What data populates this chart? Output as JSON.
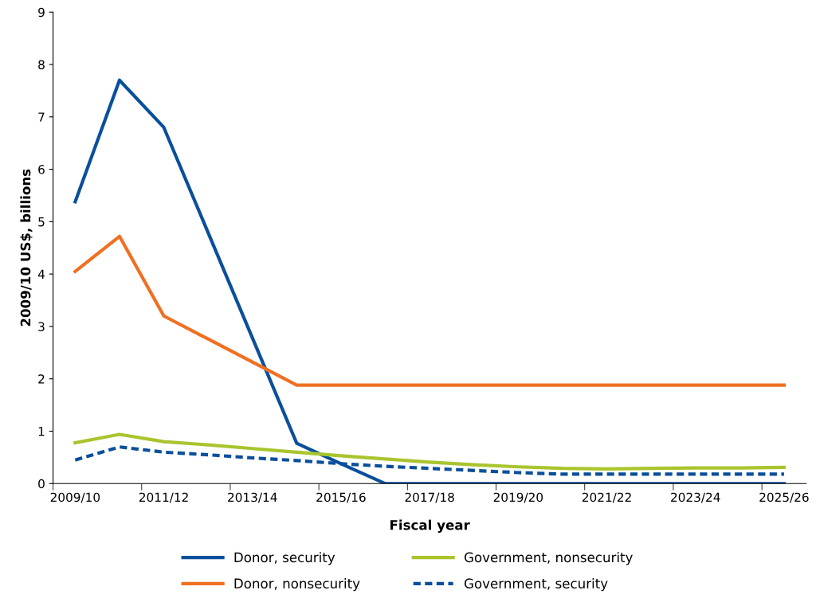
{
  "chart_data": {
    "type": "line",
    "xlabel": "Fiscal year",
    "ylabel": "2009/10 US$, billions",
    "categories": [
      "2009/10",
      null,
      "2011/12",
      null,
      "2013/14",
      null,
      "2015/16",
      null,
      "2017/18",
      null,
      "2019/20",
      null,
      "2021/22",
      null,
      "2023/24",
      null,
      "2025/26"
    ],
    "ylim": [
      0,
      9
    ],
    "yticks": [
      0,
      1,
      2,
      3,
      4,
      5,
      6,
      7,
      8,
      9
    ],
    "grid": false,
    "legend": "bottom",
    "marker": "none",
    "series": [
      {
        "name": "Donor, security",
        "color": "#0b4f9c",
        "line_style": "solid",
        "values": [
          5.38,
          7.7,
          6.8,
          4.79,
          2.78,
          0.77,
          0.38,
          0,
          0,
          0,
          0,
          0,
          0,
          0,
          0,
          0,
          0
        ]
      },
      {
        "name": "Donor, nonsecurity",
        "color": "#f07022",
        "line_style": "solid",
        "values": [
          4.05,
          4.72,
          3.2,
          2.76,
          2.32,
          1.88,
          1.88,
          1.88,
          1.88,
          1.88,
          1.88,
          1.88,
          1.88,
          1.88,
          1.88,
          1.88,
          1.88
        ]
      },
      {
        "name": "Government, nonsecurity",
        "color": "#a9c52e",
        "line_style": "solid",
        "values": [
          0.78,
          0.94,
          0.8,
          0.74,
          0.67,
          0.6,
          0.53,
          0.47,
          0.41,
          0.36,
          0.32,
          0.29,
          0.28,
          0.29,
          0.3,
          0.3,
          0.31
        ]
      },
      {
        "name": "Government, security",
        "color": "#0b4f9c",
        "line_style": "dashed",
        "values": [
          0.45,
          0.7,
          0.6,
          0.55,
          0.49,
          0.44,
          0.38,
          0.33,
          0.29,
          0.25,
          0.21,
          0.18,
          0.18,
          0.18,
          0.18,
          0.18,
          0.18
        ]
      }
    ]
  }
}
